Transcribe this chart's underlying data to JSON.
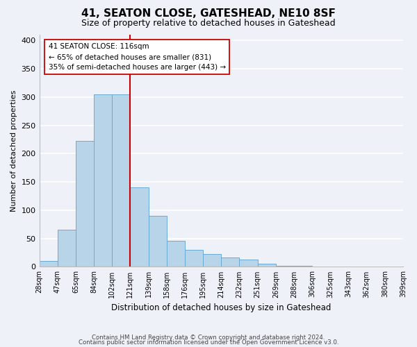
{
  "title": "41, SEATON CLOSE, GATESHEAD, NE10 8SF",
  "subtitle": "Size of property relative to detached houses in Gateshead",
  "xlabel": "Distribution of detached houses by size in Gateshead",
  "ylabel": "Number of detached properties",
  "bin_edges": [
    "28sqm",
    "47sqm",
    "65sqm",
    "84sqm",
    "102sqm",
    "121sqm",
    "139sqm",
    "158sqm",
    "176sqm",
    "195sqm",
    "214sqm",
    "232sqm",
    "251sqm",
    "269sqm",
    "288sqm",
    "306sqm",
    "325sqm",
    "343sqm",
    "362sqm",
    "380sqm",
    "399sqm"
  ],
  "bar_heights": [
    10,
    65,
    222,
    305,
    305,
    140,
    90,
    46,
    30,
    23,
    16,
    13,
    5,
    2,
    2,
    1,
    1,
    1,
    1,
    1
  ],
  "bar_color": "#b8d4e8",
  "bar_edge_color": "#6aaad4",
  "property_line_x": 5,
  "property_line_color": "#cc0000",
  "annotation_title": "41 SEATON CLOSE: 116sqm",
  "annotation_line1": "← 65% of detached houses are smaller (831)",
  "annotation_line2": "35% of semi-detached houses are larger (443) →",
  "annotation_box_color": "#ffffff",
  "annotation_box_edge": "#cc0000",
  "ylim": [
    0,
    410
  ],
  "yticks": [
    0,
    50,
    100,
    150,
    200,
    250,
    300,
    350,
    400
  ],
  "footer_line1": "Contains HM Land Registry data © Crown copyright and database right 2024.",
  "footer_line2": "Contains public sector information licensed under the Open Government Licence v3.0.",
  "background_color": "#eef2f8"
}
